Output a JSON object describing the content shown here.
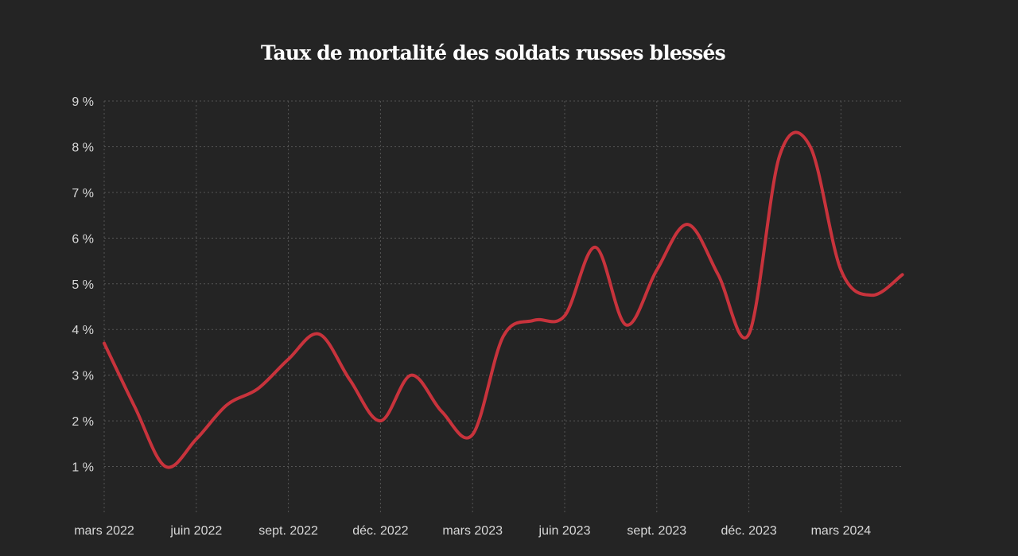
{
  "chart_data": {
    "type": "line",
    "title": "Taux de mortalité des soldats russes blessés",
    "xlabel": "",
    "ylabel": "",
    "x_ticks": [
      "mars 2022",
      "juin 2022",
      "sept. 2022",
      "déc. 2022",
      "mars 2023",
      "juin 2023",
      "sept. 2023",
      "déc. 2023",
      "mars 2024"
    ],
    "y_ticks": [
      "1 %",
      "2 %",
      "3 %",
      "4 %",
      "5 %",
      "6 %",
      "7 %",
      "8 %",
      "9 %"
    ],
    "ylim": [
      0,
      9
    ],
    "xlim": [
      "2022-03",
      "2024-05"
    ],
    "grid": true,
    "color": "#c8333c",
    "series": [
      {
        "x": [
          "2022-03",
          "2022-04",
          "2022-05",
          "2022-06",
          "2022-07",
          "2022-08",
          "2022-09",
          "2022-10",
          "2022-11",
          "2022-12",
          "2023-01",
          "2023-02",
          "2023-03",
          "2023-04",
          "2023-05",
          "2023-06",
          "2023-07",
          "2023-08",
          "2023-09",
          "2023-10",
          "2023-11",
          "2023-12",
          "2024-01",
          "2024-02",
          "2024-03",
          "2024-04",
          "2024-05"
        ],
        "values": [
          3.7,
          2.3,
          1.0,
          1.6,
          2.35,
          2.7,
          3.35,
          3.9,
          2.9,
          2.0,
          3.0,
          2.2,
          1.7,
          3.85,
          4.2,
          4.3,
          5.8,
          4.1,
          5.3,
          6.3,
          5.2,
          3.9,
          7.8,
          8.0,
          5.3,
          4.75,
          5.2
        ]
      }
    ]
  }
}
